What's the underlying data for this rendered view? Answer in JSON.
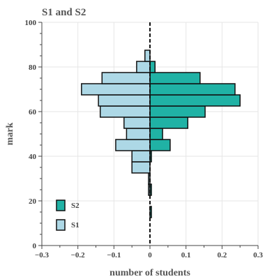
{
  "chart_data": {
    "type": "bar",
    "orientation": "horizontal",
    "title": "S1 and S2",
    "xlabel": "number of students",
    "ylabel": "mark",
    "xlim": [
      -0.3,
      0.3
    ],
    "ylim": [
      0,
      100
    ],
    "xticks": [
      -0.3,
      -0.2,
      -0.1,
      0,
      0.1,
      0.2,
      0.3
    ],
    "xtick_labels": [
      "−0.3",
      "−0.2",
      "−0.1",
      "0",
      "0.1",
      "0.2",
      "0.3"
    ],
    "yticks": [
      0,
      20,
      40,
      60,
      80,
      100
    ],
    "ytick_labels": [
      "0",
      "20",
      "40",
      "60",
      "80",
      "100"
    ],
    "grid": true,
    "legend_position": "bottom-left",
    "bin_width": 5,
    "bins": [
      15,
      20,
      25,
      30,
      35,
      40,
      45,
      50,
      55,
      60,
      65,
      70,
      75,
      80,
      85
    ],
    "series": [
      {
        "name": "S2",
        "color": "#20b2a5",
        "values": [
          0.004,
          0,
          0.004,
          0,
          0,
          0.004,
          0.056,
          0.035,
          0.105,
          0.153,
          0.25,
          0.236,
          0.139,
          0.014,
          0
        ]
      },
      {
        "name": "S1",
        "color": "#add8e6",
        "values": [
          0,
          0,
          -0.004,
          -0.004,
          -0.05,
          -0.05,
          -0.095,
          -0.065,
          -0.072,
          -0.138,
          -0.143,
          -0.19,
          -0.133,
          -0.037,
          -0.014
        ]
      }
    ]
  }
}
